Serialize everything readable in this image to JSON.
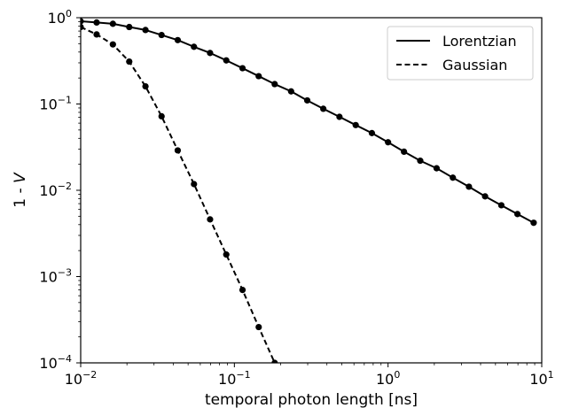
{
  "chart_data": {
    "type": "line",
    "xlabel": "temporal photon length [ns]",
    "ylabel_prefix": "1 - ",
    "ylabel_var": "V",
    "x_scale": "log",
    "y_scale": "log",
    "xlim": [
      0.01,
      10
    ],
    "ylim": [
      0.0001,
      1
    ],
    "x_ticks": [
      {
        "value": 0.01,
        "base": "10",
        "exp": "−2"
      },
      {
        "value": 0.1,
        "base": "10",
        "exp": "−1"
      },
      {
        "value": 1,
        "base": "10",
        "exp": "0"
      },
      {
        "value": 10,
        "base": "10",
        "exp": "1"
      }
    ],
    "y_ticks": [
      {
        "value": 1,
        "base": "10",
        "exp": "0"
      },
      {
        "value": 0.1,
        "base": "10",
        "exp": "−1"
      },
      {
        "value": 0.01,
        "base": "10",
        "exp": "−2"
      },
      {
        "value": 0.001,
        "base": "10",
        "exp": "−3"
      },
      {
        "value": 0.0001,
        "base": "10",
        "exp": "−4"
      }
    ],
    "grid": false,
    "legend_position": "top-right",
    "series": [
      {
        "name": "Lorentzian",
        "line_style": "solid",
        "x": [
          0.01,
          0.0127,
          0.0162,
          0.0207,
          0.0264,
          0.0336,
          0.0428,
          0.0546,
          0.0695,
          0.0886,
          0.113,
          0.144,
          0.183,
          0.234,
          0.298,
          0.379,
          0.483,
          0.616,
          0.785,
          1.0,
          1.27,
          1.62,
          2.07,
          2.64,
          3.36,
          4.28,
          5.46,
          6.95,
          8.86
        ],
        "y": [
          0.91,
          0.88,
          0.85,
          0.78,
          0.72,
          0.63,
          0.55,
          0.46,
          0.39,
          0.32,
          0.26,
          0.21,
          0.17,
          0.14,
          0.11,
          0.088,
          0.071,
          0.057,
          0.046,
          0.036,
          0.028,
          0.022,
          0.018,
          0.014,
          0.011,
          0.0085,
          0.0067,
          0.0053,
          0.0042
        ]
      },
      {
        "name": "Gaussian",
        "line_style": "dashed",
        "x": [
          0.01,
          0.0127,
          0.0162,
          0.0207,
          0.0264,
          0.0336,
          0.0428,
          0.0546,
          0.0695,
          0.0886,
          0.113,
          0.144,
          0.183
        ],
        "y": [
          0.78,
          0.64,
          0.49,
          0.31,
          0.16,
          0.072,
          0.029,
          0.0118,
          0.0046,
          0.0018,
          0.0007,
          0.00026,
          0.0001
        ]
      }
    ]
  }
}
